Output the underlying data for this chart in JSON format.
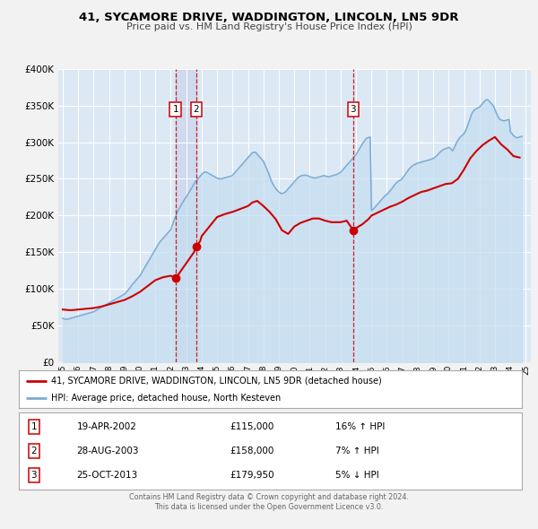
{
  "title": "41, SYCAMORE DRIVE, WADDINGTON, LINCOLN, LN5 9DR",
  "subtitle": "Price paid vs. HM Land Registry's House Price Index (HPI)",
  "legend_line1": "41, SYCAMORE DRIVE, WADDINGTON, LINCOLN, LN5 9DR (detached house)",
  "legend_line2": "HPI: Average price, detached house, North Kesteven",
  "footer1": "Contains HM Land Registry data © Crown copyright and database right 2024.",
  "footer2": "This data is licensed under the Open Government Licence v3.0.",
  "price_color": "#cc0000",
  "hpi_color": "#7aadd4",
  "hpi_fill_color": "#c5ddf0",
  "background_color": "#dce9f5",
  "grid_color": "#ffffff",
  "fig_bg": "#f2f2f2",
  "ylim": [
    0,
    400000
  ],
  "yticks": [
    0,
    50000,
    100000,
    150000,
    200000,
    250000,
    300000,
    350000,
    400000
  ],
  "xlim_start": 1994.7,
  "xlim_end": 2025.3,
  "xticks": [
    1995,
    1996,
    1997,
    1998,
    1999,
    2000,
    2001,
    2002,
    2003,
    2004,
    2005,
    2006,
    2007,
    2008,
    2009,
    2010,
    2011,
    2012,
    2013,
    2014,
    2015,
    2016,
    2017,
    2018,
    2019,
    2020,
    2021,
    2022,
    2023,
    2024,
    2025
  ],
  "sales": [
    {
      "num": 1,
      "date": "19-APR-2002",
      "date_x": 2002.3,
      "price": 115000,
      "label": "16% ↑ HPI"
    },
    {
      "num": 2,
      "date": "28-AUG-2003",
      "date_x": 2003.66,
      "price": 158000,
      "label": "7% ↑ HPI"
    },
    {
      "num": 3,
      "date": "25-OCT-2013",
      "date_x": 2013.82,
      "price": 179950,
      "label": "5% ↓ HPI"
    }
  ],
  "hpi_x": [
    1995.0,
    1995.083,
    1995.167,
    1995.25,
    1995.333,
    1995.417,
    1995.5,
    1995.583,
    1995.667,
    1995.75,
    1995.833,
    1995.917,
    1996.0,
    1996.083,
    1996.167,
    1996.25,
    1996.333,
    1996.417,
    1996.5,
    1996.583,
    1996.667,
    1996.75,
    1996.833,
    1996.917,
    1997.0,
    1997.083,
    1997.167,
    1997.25,
    1997.333,
    1997.417,
    1997.5,
    1997.583,
    1997.667,
    1997.75,
    1997.833,
    1997.917,
    1998.0,
    1998.083,
    1998.167,
    1998.25,
    1998.333,
    1998.417,
    1998.5,
    1998.583,
    1998.667,
    1998.75,
    1998.833,
    1998.917,
    1999.0,
    1999.083,
    1999.167,
    1999.25,
    1999.333,
    1999.417,
    1999.5,
    1999.583,
    1999.667,
    1999.75,
    1999.833,
    1999.917,
    2000.0,
    2000.083,
    2000.167,
    2000.25,
    2000.333,
    2000.417,
    2000.5,
    2000.583,
    2000.667,
    2000.75,
    2000.833,
    2000.917,
    2001.0,
    2001.083,
    2001.167,
    2001.25,
    2001.333,
    2001.417,
    2001.5,
    2001.583,
    2001.667,
    2001.75,
    2001.833,
    2001.917,
    2002.0,
    2002.083,
    2002.167,
    2002.25,
    2002.333,
    2002.417,
    2002.5,
    2002.583,
    2002.667,
    2002.75,
    2002.833,
    2002.917,
    2003.0,
    2003.083,
    2003.167,
    2003.25,
    2003.333,
    2003.417,
    2003.5,
    2003.583,
    2003.667,
    2003.75,
    2003.833,
    2003.917,
    2004.0,
    2004.083,
    2004.167,
    2004.25,
    2004.333,
    2004.417,
    2004.5,
    2004.583,
    2004.667,
    2004.75,
    2004.833,
    2004.917,
    2005.0,
    2005.083,
    2005.167,
    2005.25,
    2005.333,
    2005.417,
    2005.5,
    2005.583,
    2005.667,
    2005.75,
    2005.833,
    2005.917,
    2006.0,
    2006.083,
    2006.167,
    2006.25,
    2006.333,
    2006.417,
    2006.5,
    2006.583,
    2006.667,
    2006.75,
    2006.833,
    2006.917,
    2007.0,
    2007.083,
    2007.167,
    2007.25,
    2007.333,
    2007.417,
    2007.5,
    2007.583,
    2007.667,
    2007.75,
    2007.833,
    2007.917,
    2008.0,
    2008.083,
    2008.167,
    2008.25,
    2008.333,
    2008.417,
    2008.5,
    2008.583,
    2008.667,
    2008.75,
    2008.833,
    2008.917,
    2009.0,
    2009.083,
    2009.167,
    2009.25,
    2009.333,
    2009.417,
    2009.5,
    2009.583,
    2009.667,
    2009.75,
    2009.833,
    2009.917,
    2010.0,
    2010.083,
    2010.167,
    2010.25,
    2010.333,
    2010.417,
    2010.5,
    2010.583,
    2010.667,
    2010.75,
    2010.833,
    2010.917,
    2011.0,
    2011.083,
    2011.167,
    2011.25,
    2011.333,
    2011.417,
    2011.5,
    2011.583,
    2011.667,
    2011.75,
    2011.833,
    2011.917,
    2012.0,
    2012.083,
    2012.167,
    2012.25,
    2012.333,
    2012.417,
    2012.5,
    2012.583,
    2012.667,
    2012.75,
    2012.833,
    2012.917,
    2013.0,
    2013.083,
    2013.167,
    2013.25,
    2013.333,
    2013.417,
    2013.5,
    2013.583,
    2013.667,
    2013.75,
    2013.833,
    2013.917,
    2014.0,
    2014.083,
    2014.167,
    2014.25,
    2014.333,
    2014.417,
    2014.5,
    2014.583,
    2014.667,
    2014.75,
    2014.833,
    2014.917,
    2015.0,
    2015.083,
    2015.167,
    2015.25,
    2015.333,
    2015.417,
    2015.5,
    2015.583,
    2015.667,
    2015.75,
    2015.833,
    2015.917,
    2016.0,
    2016.083,
    2016.167,
    2016.25,
    2016.333,
    2016.417,
    2016.5,
    2016.583,
    2016.667,
    2016.75,
    2016.833,
    2016.917,
    2017.0,
    2017.083,
    2017.167,
    2017.25,
    2017.333,
    2017.417,
    2017.5,
    2017.583,
    2017.667,
    2017.75,
    2017.833,
    2017.917,
    2018.0,
    2018.083,
    2018.167,
    2018.25,
    2018.333,
    2018.417,
    2018.5,
    2018.583,
    2018.667,
    2018.75,
    2018.833,
    2018.917,
    2019.0,
    2019.083,
    2019.167,
    2019.25,
    2019.333,
    2019.417,
    2019.5,
    2019.583,
    2019.667,
    2019.75,
    2019.833,
    2019.917,
    2020.0,
    2020.083,
    2020.167,
    2020.25,
    2020.333,
    2020.417,
    2020.5,
    2020.583,
    2020.667,
    2020.75,
    2020.833,
    2020.917,
    2021.0,
    2021.083,
    2021.167,
    2021.25,
    2021.333,
    2021.417,
    2021.5,
    2021.583,
    2021.667,
    2021.75,
    2021.833,
    2021.917,
    2022.0,
    2022.083,
    2022.167,
    2022.25,
    2022.333,
    2022.417,
    2022.5,
    2022.583,
    2022.667,
    2022.75,
    2022.833,
    2022.917,
    2023.0,
    2023.083,
    2023.167,
    2023.25,
    2023.333,
    2023.417,
    2023.5,
    2023.583,
    2023.667,
    2023.75,
    2023.833,
    2023.917,
    2024.0,
    2024.083,
    2024.167,
    2024.25,
    2024.333,
    2024.417,
    2024.5,
    2024.583,
    2024.667,
    2024.75
  ],
  "hpi_y": [
    60000,
    59500,
    59000,
    58800,
    59000,
    59500,
    60000,
    60500,
    61000,
    61500,
    62000,
    62500,
    63000,
    63500,
    64000,
    64500,
    65000,
    65500,
    66000,
    66500,
    67000,
    67500,
    68000,
    68500,
    69000,
    70000,
    71000,
    72000,
    73000,
    74000,
    75000,
    76000,
    77000,
    78000,
    79000,
    80000,
    81000,
    82000,
    83000,
    84000,
    85000,
    86000,
    87000,
    88000,
    89000,
    90000,
    91000,
    92000,
    93000,
    95000,
    97000,
    99000,
    101000,
    103500,
    106000,
    108000,
    110000,
    112000,
    114000,
    116000,
    118000,
    121000,
    124000,
    127000,
    130000,
    133000,
    136000,
    139000,
    142000,
    145000,
    148000,
    151000,
    154000,
    157000,
    160000,
    163000,
    165000,
    167000,
    169000,
    171000,
    173000,
    175000,
    177000,
    179000,
    181000,
    186000,
    191000,
    196000,
    200000,
    204000,
    208000,
    211000,
    214000,
    217000,
    220000,
    223000,
    225000,
    228000,
    231000,
    234000,
    237000,
    240000,
    243000,
    246000,
    248000,
    250000,
    252000,
    254000,
    256000,
    258000,
    259000,
    259500,
    259000,
    258000,
    257000,
    256000,
    255000,
    254000,
    253000,
    252000,
    251000,
    250500,
    250000,
    250000,
    250500,
    251000,
    251500,
    252000,
    252500,
    253000,
    253500,
    254000,
    255000,
    257000,
    259000,
    261000,
    263000,
    265000,
    267000,
    269000,
    271000,
    273000,
    275000,
    277000,
    279000,
    281000,
    283000,
    285000,
    286000,
    286500,
    286000,
    284000,
    282000,
    280000,
    278000,
    276000,
    274000,
    270000,
    266000,
    262000,
    258000,
    253000,
    248000,
    244000,
    241000,
    238000,
    236000,
    234000,
    232000,
    231000,
    230000,
    230500,
    231000,
    232000,
    234000,
    236000,
    238000,
    240000,
    242000,
    244000,
    246000,
    248000,
    250000,
    252000,
    253000,
    254000,
    254500,
    255000,
    255000,
    255000,
    254500,
    254000,
    253000,
    252500,
    252000,
    251500,
    251000,
    251500,
    252000,
    252500,
    253000,
    253500,
    254000,
    254500,
    254000,
    253500,
    253000,
    253000,
    253500,
    254000,
    254500,
    255000,
    255500,
    256000,
    257000,
    258000,
    259000,
    261000,
    263000,
    265000,
    267000,
    269000,
    271000,
    273000,
    275000,
    277000,
    279000,
    281000,
    283000,
    286000,
    289000,
    292000,
    295000,
    298000,
    300500,
    303000,
    305000,
    306000,
    306500,
    307000,
    207000,
    208000,
    210000,
    212000,
    214000,
    216000,
    218000,
    220000,
    222000,
    224000,
    226000,
    228000,
    229000,
    231000,
    233000,
    235000,
    237000,
    239500,
    242000,
    244000,
    245500,
    247000,
    248000,
    249000,
    251000,
    253000,
    255500,
    258000,
    260500,
    263000,
    265000,
    266500,
    268000,
    269000,
    270000,
    271000,
    271500,
    272000,
    272500,
    273000,
    273500,
    274000,
    274500,
    275000,
    275500,
    276000,
    276500,
    277000,
    278000,
    279000,
    280500,
    282000,
    284000,
    286000,
    287500,
    289000,
    290000,
    291000,
    291500,
    292000,
    293000,
    292000,
    290500,
    288000,
    291000,
    295000,
    299000,
    302000,
    305000,
    307000,
    308500,
    310000,
    312000,
    315000,
    319000,
    324000,
    329000,
    334000,
    339000,
    342000,
    344000,
    345000,
    346000,
    347000,
    348000,
    350000,
    352000,
    354000,
    356000,
    357500,
    358000,
    357000,
    355000,
    353000,
    351000,
    349000,
    344000,
    340000,
    336000,
    333000,
    331000,
    330000,
    329500,
    329000,
    329500,
    330000,
    330500,
    331000,
    314000,
    312000,
    310000,
    308000,
    307000,
    306000,
    306500,
    307000,
    307500,
    308000
  ],
  "price_x": [
    1995.0,
    1995.5,
    1996.0,
    1996.5,
    1997.0,
    1997.5,
    1998.0,
    1998.5,
    1999.0,
    1999.5,
    2000.0,
    2000.5,
    2001.0,
    2001.5,
    2002.0,
    2002.3,
    2002.5,
    2003.0,
    2003.5,
    2003.66,
    2003.9,
    2004.0,
    2004.5,
    2005.0,
    2005.5,
    2006.0,
    2006.5,
    2007.0,
    2007.3,
    2007.6,
    2008.0,
    2008.4,
    2008.8,
    2009.2,
    2009.6,
    2010.0,
    2010.4,
    2010.8,
    2011.2,
    2011.6,
    2012.0,
    2012.4,
    2012.8,
    2013.0,
    2013.4,
    2013.82,
    2014.0,
    2014.4,
    2014.8,
    2015.0,
    2015.4,
    2015.8,
    2016.2,
    2016.6,
    2017.0,
    2017.4,
    2017.8,
    2018.2,
    2018.6,
    2019.0,
    2019.4,
    2019.8,
    2020.2,
    2020.6,
    2021.0,
    2021.4,
    2021.8,
    2022.2,
    2022.6,
    2023.0,
    2023.4,
    2023.8,
    2024.2,
    2024.6
  ],
  "price_y": [
    72000,
    71000,
    72000,
    73000,
    74000,
    76000,
    79000,
    82000,
    85000,
    90000,
    96000,
    104000,
    112000,
    116000,
    118000,
    115000,
    120000,
    135000,
    150000,
    158000,
    165000,
    172000,
    185000,
    198000,
    202000,
    205000,
    209000,
    213000,
    218000,
    220000,
    213000,
    205000,
    195000,
    180000,
    175000,
    185000,
    190000,
    193000,
    196000,
    196000,
    193000,
    191000,
    191000,
    191000,
    193000,
    179950,
    183000,
    188000,
    195000,
    200000,
    204000,
    208000,
    212000,
    215000,
    219000,
    224000,
    228000,
    232000,
    234000,
    237000,
    240000,
    243000,
    244000,
    250000,
    263000,
    278000,
    288000,
    296000,
    302000,
    307000,
    297000,
    290000,
    281000,
    279000
  ]
}
